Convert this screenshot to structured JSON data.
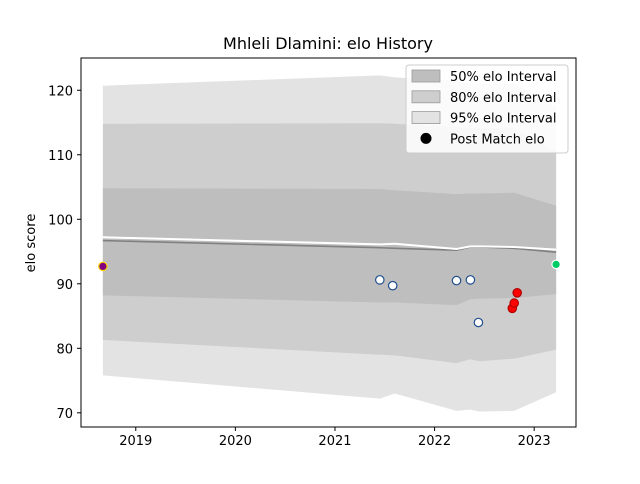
{
  "chart_data": {
    "type": "area",
    "title": "Mhleli Dlamini: elo History",
    "xlabel": "",
    "ylabel": "elo score",
    "xlim": [
      2018.45,
      2023.42
    ],
    "ylim": [
      67.8,
      125.0
    ],
    "x_ticks": [
      {
        "value": 2019,
        "label": "2019"
      },
      {
        "value": 2020,
        "label": "2020"
      },
      {
        "value": 2021,
        "label": "2021"
      },
      {
        "value": 2022,
        "label": "2022"
      },
      {
        "value": 2023,
        "label": "2023"
      }
    ],
    "y_ticks": [
      {
        "value": 70,
        "label": "70"
      },
      {
        "value": 80,
        "label": "80"
      },
      {
        "value": 90,
        "label": "90"
      },
      {
        "value": 100,
        "label": "100"
      },
      {
        "value": 110,
        "label": "110"
      },
      {
        "value": 120,
        "label": "120"
      }
    ],
    "grid": false,
    "legend_position": "top-right",
    "colors": {
      "band_95": "#e3e3e3",
      "band_80": "#cecece",
      "band_50": "#bebebe",
      "mean_line": "#808080",
      "post_match_line": "#ffffff",
      "legend_marker": "#000000"
    },
    "legend": [
      {
        "key": "band_50",
        "label": "50% elo Interval"
      },
      {
        "key": "band_80",
        "label": "80% elo Interval"
      },
      {
        "key": "band_95",
        "label": "95% elo Interval"
      },
      {
        "key": "points",
        "label": "Post Match elo"
      }
    ],
    "x": [
      2018.67,
      2021.45,
      2021.6,
      2022.22,
      2022.36,
      2022.45,
      2022.8,
      2023.22
    ],
    "series": [
      {
        "key": "band_95",
        "upper": [
          120.7,
          122.3,
          122.0,
          121.5,
          121.0,
          121.0,
          121.0,
          117.5
        ],
        "lower": [
          75.8,
          72.2,
          73.0,
          70.3,
          70.5,
          70.2,
          70.3,
          73.2
        ]
      },
      {
        "key": "band_80",
        "upper": [
          114.8,
          114.9,
          114.8,
          114.3,
          114.1,
          114.1,
          114.1,
          110.5
        ],
        "lower": [
          81.3,
          79.0,
          78.9,
          77.7,
          78.3,
          78.0,
          78.4,
          79.8
        ]
      },
      {
        "key": "band_50",
        "upper": [
          104.8,
          104.7,
          104.5,
          103.9,
          104.0,
          104.0,
          104.1,
          102.1
        ],
        "lower": [
          88.2,
          87.1,
          87.1,
          86.7,
          87.6,
          87.7,
          87.8,
          88.4
        ]
      },
      {
        "key": "mean_line",
        "values": [
          96.7,
          95.6,
          95.5,
          95.2,
          95.7,
          95.7,
          95.5,
          94.9
        ]
      },
      {
        "key": "post_match_line",
        "values": [
          97.2,
          96.1,
          96.2,
          95.4,
          95.8,
          95.8,
          95.7,
          95.3
        ]
      }
    ],
    "points": [
      {
        "x": 2018.67,
        "y": 92.7,
        "fill": "#800080",
        "edge": "#ffd700"
      },
      {
        "x": 2021.45,
        "y": 90.6,
        "fill": "#ffffff",
        "edge": "#1f4e8c"
      },
      {
        "x": 2021.58,
        "y": 89.7,
        "fill": "#ffffff",
        "edge": "#1f4e8c"
      },
      {
        "x": 2022.22,
        "y": 90.5,
        "fill": "#ffffff",
        "edge": "#1f4e8c"
      },
      {
        "x": 2022.36,
        "y": 90.6,
        "fill": "#ffffff",
        "edge": "#1f4e8c"
      },
      {
        "x": 2022.44,
        "y": 84.0,
        "fill": "#ffffff",
        "edge": "#1f4e8c"
      },
      {
        "x": 2022.78,
        "y": 86.2,
        "fill": "#ff0000",
        "edge": "#b00000"
      },
      {
        "x": 2022.8,
        "y": 87.0,
        "fill": "#ff0000",
        "edge": "#b00000"
      },
      {
        "x": 2022.83,
        "y": 88.6,
        "fill": "#ff0000",
        "edge": "#b00000"
      },
      {
        "x": 2023.22,
        "y": 93.0,
        "fill": "#00cc66",
        "edge": "#ffffff"
      }
    ]
  }
}
